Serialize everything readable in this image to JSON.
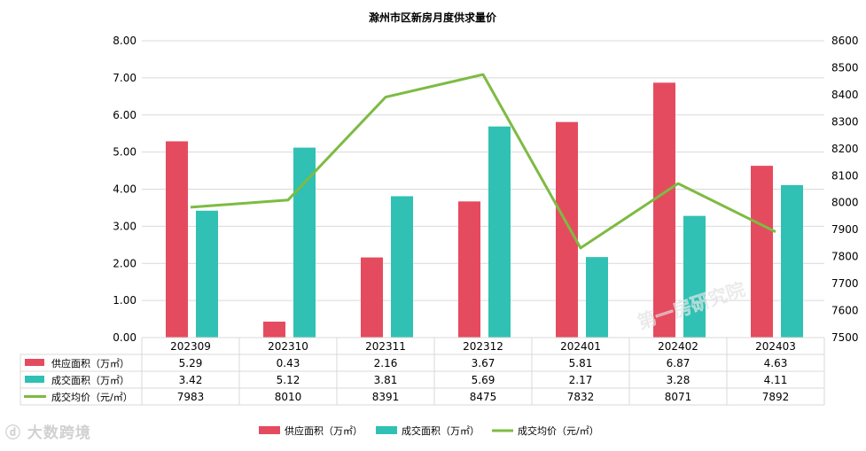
{
  "colors": {
    "supply": "#e54b5f",
    "deal": "#30c1b4",
    "price": "#7dbb42",
    "grid": "#d9d9d9",
    "text": "#000000"
  },
  "watermarks": {
    "center": "第一房研究院",
    "bottom_left": "大数跨境"
  },
  "chart_data": {
    "type": "bar",
    "title": "滁州市区新房月度供求量价",
    "categories": [
      "202309",
      "202310",
      "202311",
      "202312",
      "202401",
      "202402",
      "202403"
    ],
    "series": [
      {
        "name": "供应面积（万㎡）",
        "kind": "bar",
        "axis": "left",
        "values": [
          5.29,
          0.43,
          2.16,
          3.67,
          5.81,
          6.87,
          4.63
        ],
        "labels": [
          "5.29",
          "0.43",
          "2.16",
          "3.67",
          "5.81",
          "6.87",
          "4.63"
        ]
      },
      {
        "name": "成交面积（万㎡）",
        "kind": "bar",
        "axis": "left",
        "values": [
          3.42,
          5.12,
          3.81,
          5.69,
          2.17,
          3.28,
          4.11
        ],
        "labels": [
          "3.42",
          "5.12",
          "3.81",
          "5.69",
          "2.17",
          "3.28",
          "4.11"
        ]
      },
      {
        "name": "成交均价（元/㎡）",
        "kind": "line",
        "axis": "right",
        "values": [
          7983,
          8010,
          8391,
          8475,
          7832,
          8071,
          7892
        ],
        "labels": [
          "7983",
          "8010",
          "8391",
          "8475",
          "7832",
          "8071",
          "7892"
        ]
      }
    ],
    "y_left": {
      "min": 0,
      "max": 8,
      "ticks": [
        0,
        1,
        2,
        3,
        4,
        5,
        6,
        7,
        8
      ],
      "tick_labels": [
        "0.00",
        "1.00",
        "2.00",
        "3.00",
        "4.00",
        "5.00",
        "6.00",
        "7.00",
        "8.00"
      ]
    },
    "y_right": {
      "min": 7500,
      "max": 8600,
      "ticks": [
        7500,
        7600,
        7700,
        7800,
        7900,
        8000,
        8100,
        8200,
        8300,
        8400,
        8500,
        8600
      ],
      "tick_labels": [
        "7500",
        "7600",
        "7700",
        "7800",
        "7900",
        "8000",
        "8100",
        "8200",
        "8300",
        "8400",
        "8500",
        "8600"
      ]
    },
    "grid": true,
    "legend_position": "bottom",
    "data_table": true
  }
}
